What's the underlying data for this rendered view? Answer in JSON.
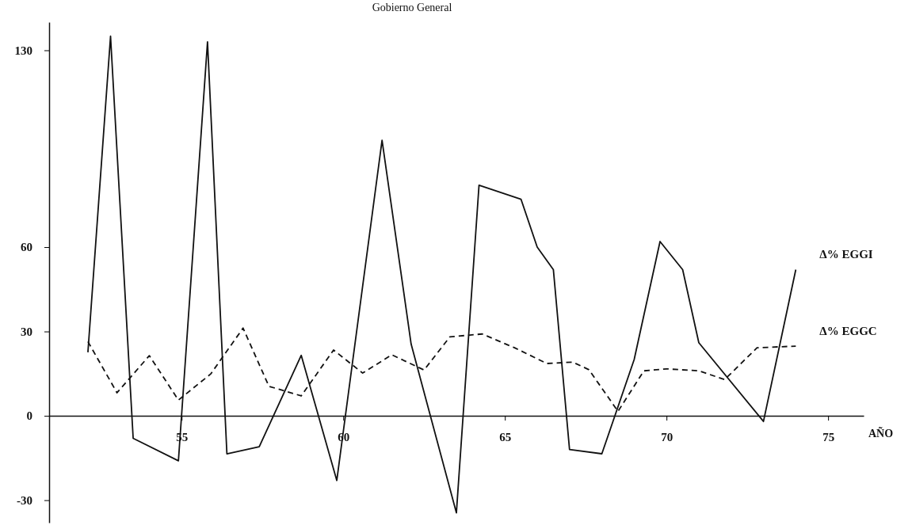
{
  "chart_data": {
    "type": "line",
    "title": "Gobierno General",
    "xlabel": "AÑO",
    "xlim": [
      50.9,
      76.1
    ],
    "xticks": [
      55,
      60,
      65,
      70,
      75
    ],
    "ylim": [
      -38,
      140
    ],
    "yticks": [
      -30,
      0,
      30,
      60,
      130
    ],
    "grid": false,
    "legend": false,
    "marker": "none",
    "series": [
      {
        "name": "Δ% EGGI",
        "color": "#111111",
        "line_style": "solid",
        "x": [
          52.1,
          52.8,
          53.5,
          54.9,
          55.8,
          56.4,
          57.4,
          58.7,
          59.8,
          61.2,
          62.1,
          63.5,
          64.2,
          65.5,
          66.0,
          66.5,
          67.0,
          68.0,
          69.0,
          69.8,
          70.5,
          71.0,
          73.0,
          74.0
        ],
        "values": [
          22.6,
          135,
          -8,
          -16,
          133,
          -13.5,
          -11,
          21.5,
          -23,
          98,
          25.5,
          -34.5,
          82,
          77,
          60,
          52,
          -12,
          -13.5,
          20,
          62,
          52,
          26,
          -2,
          52
        ]
      },
      {
        "name": "Δ% EGGC",
        "color": "#111111",
        "line_style": "dashed",
        "x": [
          52.1,
          53.0,
          54.0,
          54.9,
          55.9,
          56.9,
          57.7,
          58.7,
          59.7,
          60.6,
          61.5,
          62.5,
          63.3,
          64.3,
          65.3,
          66.3,
          67.1,
          67.6,
          68.5,
          69.3,
          70.0,
          71.0,
          71.8,
          72.8,
          74.0
        ],
        "values": [
          26.4,
          8.2,
          21.4,
          5.6,
          14.9,
          31.2,
          10.5,
          7.1,
          23.4,
          15.2,
          21.7,
          16.3,
          28.1,
          29.1,
          24.2,
          18.6,
          19.1,
          16.4,
          1.6,
          16,
          16.7,
          16,
          12.9,
          24.2,
          24.8
        ]
      }
    ]
  }
}
